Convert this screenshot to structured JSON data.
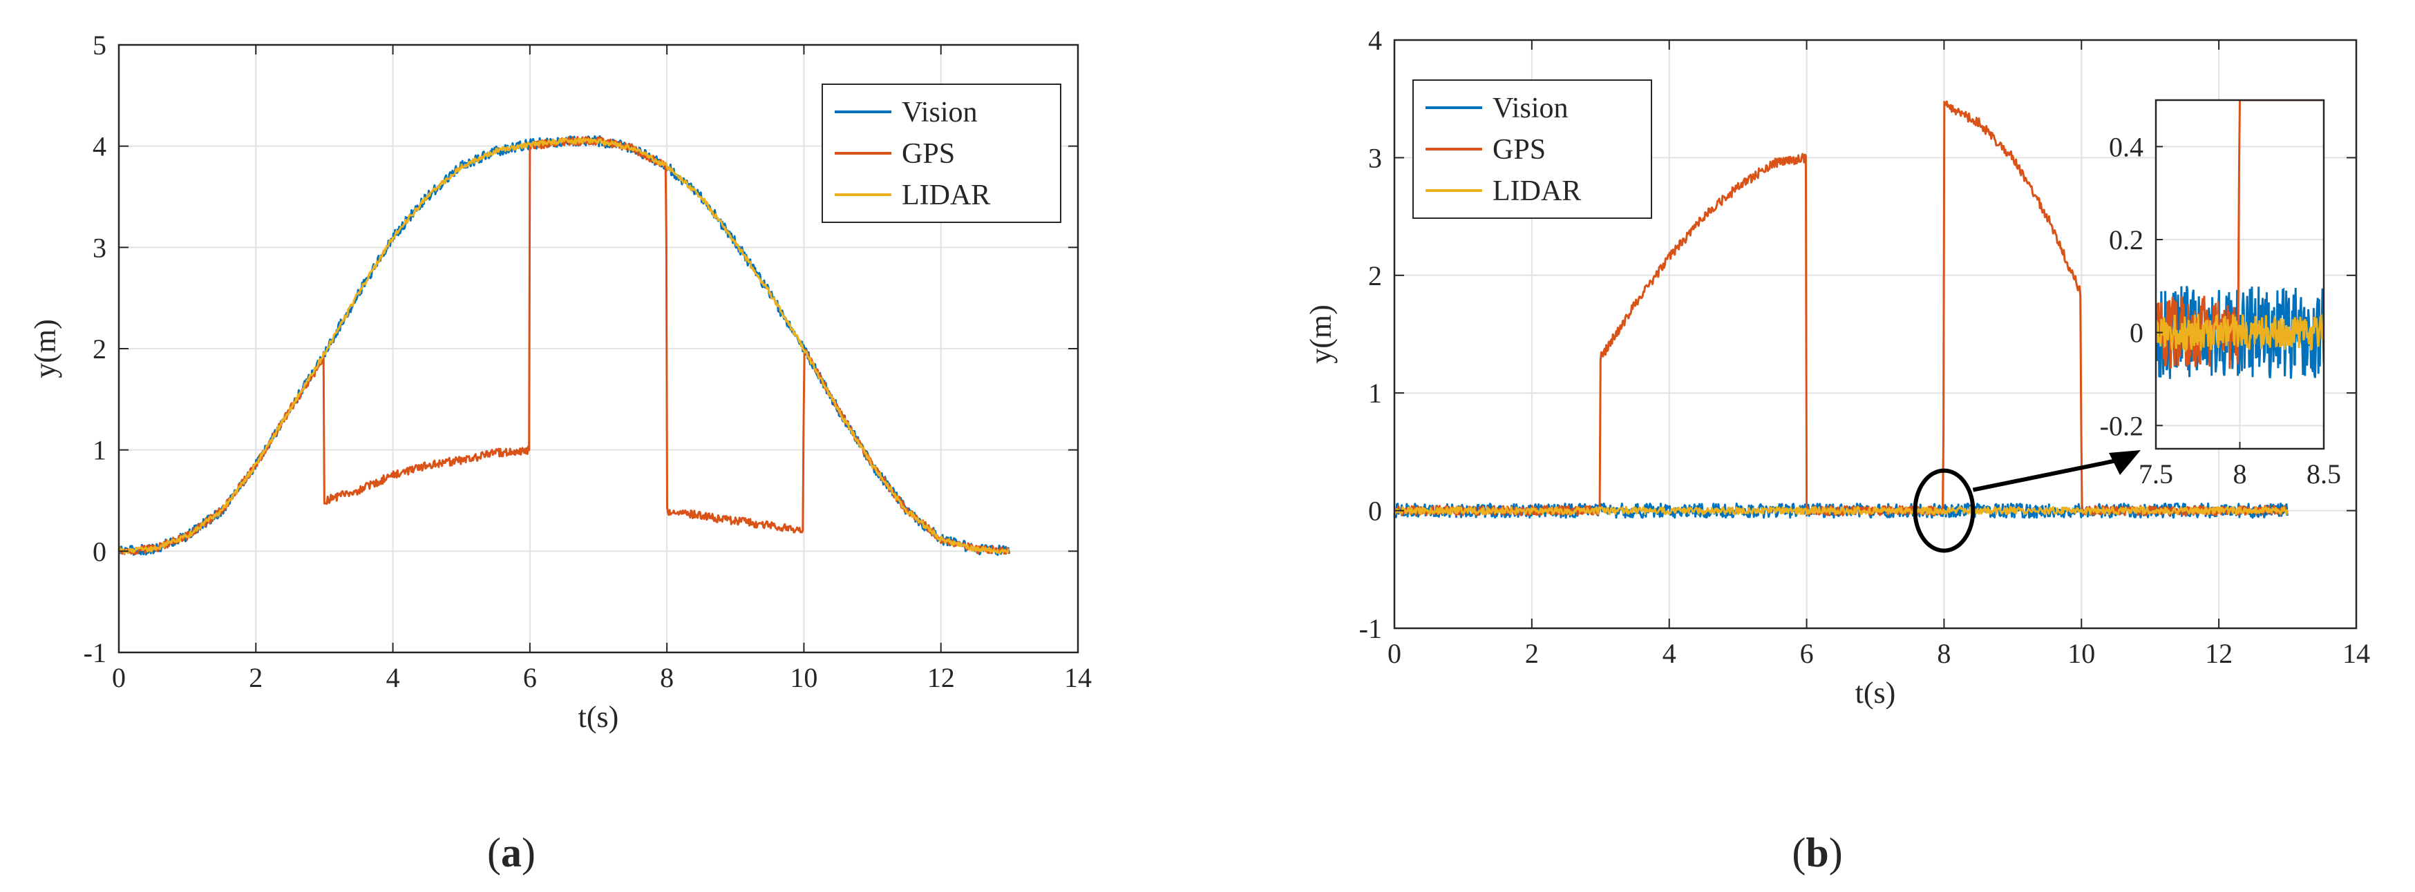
{
  "chart_data": [
    {
      "type": "line",
      "panel": "a",
      "panel_label": "a",
      "xlabel": "t(s)",
      "ylabel": "y(m)",
      "xlim": [
        0,
        14
      ],
      "ylim": [
        -1,
        5
      ],
      "xticks": [
        0,
        2,
        4,
        6,
        8,
        10,
        12,
        14
      ],
      "yticks": [
        -1,
        0,
        1,
        2,
        3,
        4,
        5
      ],
      "grid": true,
      "legend_position": "top-right",
      "series": [
        {
          "name": "Vision",
          "color": "#0072BD",
          "noise": 0.05,
          "x": [
            0,
            0.5,
            1,
            1.5,
            2,
            2.5,
            3,
            3.5,
            4,
            4.5,
            5,
            5.5,
            6,
            6.5,
            7,
            7.5,
            8,
            8.5,
            9,
            9.5,
            10,
            10.5,
            11,
            11.5,
            12,
            12.5,
            13
          ],
          "y": [
            0.0,
            0.02,
            0.15,
            0.4,
            0.85,
            1.4,
            1.95,
            2.55,
            3.1,
            3.5,
            3.8,
            3.95,
            4.02,
            4.05,
            4.05,
            3.98,
            3.8,
            3.5,
            3.05,
            2.55,
            2.0,
            1.4,
            0.85,
            0.4,
            0.12,
            0.02,
            0.0
          ]
        },
        {
          "name": "GPS",
          "color": "#D95319",
          "noise": 0.04,
          "x": [
            0,
            0.5,
            1,
            1.5,
            2,
            2.5,
            2.99,
            3.0,
            3.5,
            4,
            4.5,
            5,
            5.5,
            5.99,
            6.0,
            6.5,
            7,
            7.5,
            7.99,
            8.0,
            8.5,
            9,
            9.5,
            9.99,
            10.0,
            10.5,
            11,
            11.5,
            12,
            12.5,
            13
          ],
          "y": [
            0.0,
            0.02,
            0.15,
            0.4,
            0.85,
            1.4,
            1.9,
            0.5,
            0.6,
            0.75,
            0.85,
            0.9,
            0.97,
            1.0,
            4.0,
            4.05,
            4.05,
            3.98,
            3.8,
            0.4,
            0.35,
            0.3,
            0.25,
            0.2,
            2.0,
            1.4,
            0.85,
            0.4,
            0.12,
            0.02,
            0.0
          ]
        },
        {
          "name": "LIDAR",
          "color": "#EDB120",
          "noise": 0.025,
          "x": [
            0,
            0.5,
            1,
            1.5,
            2,
            2.5,
            3,
            3.5,
            4,
            4.5,
            5,
            5.5,
            6,
            6.5,
            7,
            7.5,
            8,
            8.5,
            9,
            9.5,
            10,
            10.5,
            11,
            11.5,
            12,
            12.5,
            13
          ],
          "y": [
            0.0,
            0.02,
            0.15,
            0.4,
            0.85,
            1.4,
            1.95,
            2.55,
            3.1,
            3.5,
            3.8,
            3.95,
            4.02,
            4.05,
            4.05,
            3.98,
            3.8,
            3.5,
            3.05,
            2.55,
            2.0,
            1.4,
            0.85,
            0.4,
            0.12,
            0.02,
            0.0
          ]
        }
      ]
    },
    {
      "type": "line",
      "panel": "b",
      "panel_label": "b",
      "xlabel": "t(s)",
      "ylabel": "y(m)",
      "xlim": [
        0,
        14
      ],
      "ylim": [
        -1,
        4
      ],
      "xticks": [
        0,
        2,
        4,
        6,
        8,
        10,
        12,
        14
      ],
      "yticks": [
        -1,
        0,
        1,
        2,
        3,
        4
      ],
      "grid": true,
      "legend_position": "top-left",
      "series": [
        {
          "name": "Vision",
          "color": "#0072BD",
          "noise": 0.06,
          "x": [
            0,
            13
          ],
          "y": [
            0,
            0
          ]
        },
        {
          "name": "GPS",
          "color": "#D95319",
          "noise": 0.04,
          "x": [
            0,
            2.99,
            3.0,
            3.5,
            4,
            4.5,
            5,
            5.5,
            5.99,
            6.0,
            7.99,
            8.0,
            8.5,
            9,
            9.5,
            9.99,
            10.0,
            13
          ],
          "y": [
            0,
            0,
            1.3,
            1.75,
            2.15,
            2.5,
            2.75,
            2.95,
            3.0,
            0,
            0,
            3.45,
            3.3,
            3.0,
            2.5,
            1.85,
            0,
            0
          ]
        },
        {
          "name": "LIDAR",
          "color": "#EDB120",
          "noise": 0.03,
          "x": [
            0,
            13
          ],
          "y": [
            0,
            0
          ]
        }
      ],
      "inset": {
        "xlim": [
          7.5,
          8.5
        ],
        "ylim": [
          -0.25,
          0.5
        ],
        "xticks": [
          7.5,
          8,
          8.5
        ],
        "xtick_labels": [
          "7.5",
          "8",
          "8.5"
        ],
        "yticks": [
          -0.2,
          0,
          0.2,
          0.4
        ],
        "ytick_labels": [
          "-0.2",
          "0",
          "0.2",
          "0.4"
        ],
        "series": [
          {
            "name": "Vision",
            "color": "#0072BD",
            "noise": 0.1,
            "x": [
              7.5,
              8.5
            ],
            "y": [
              0,
              0
            ]
          },
          {
            "name": "GPS",
            "color": "#D95319",
            "noise": 0.08,
            "x": [
              7.5,
              7.99,
              8.0,
              8.5
            ],
            "y": [
              0,
              0,
              0.5,
              0.5
            ]
          },
          {
            "name": "LIDAR",
            "color": "#EDB120",
            "noise": 0.04,
            "x": [
              7.5,
              8.5
            ],
            "y": [
              0,
              0
            ]
          }
        ],
        "zoom_circle_center": [
          8.0,
          0.0
        ]
      }
    }
  ]
}
